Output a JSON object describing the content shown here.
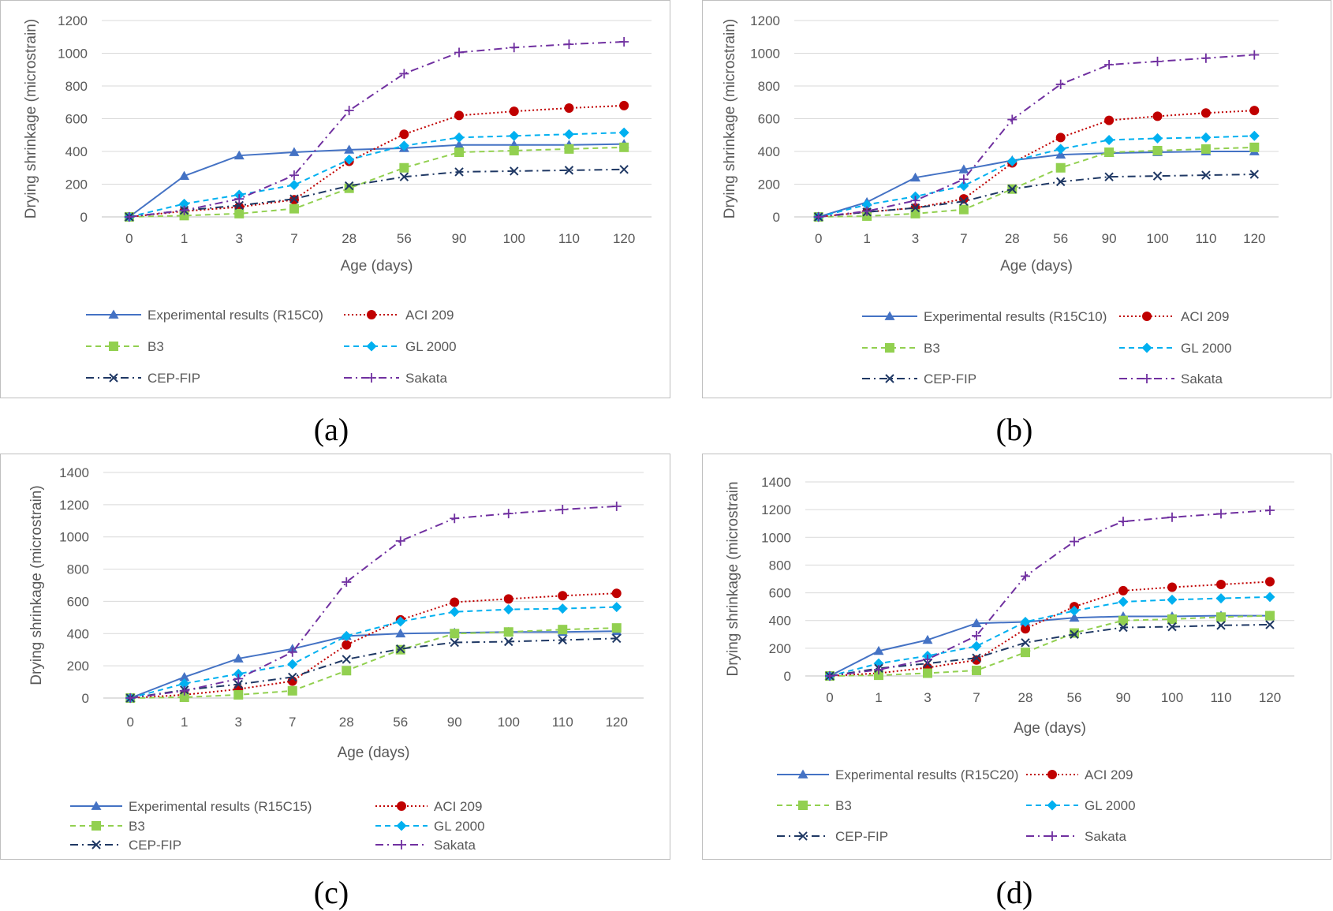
{
  "figure": {
    "panels": [
      {
        "id": "a",
        "caption": "(a)"
      },
      {
        "id": "b",
        "caption": "(b)"
      },
      {
        "id": "c",
        "caption": "(c)"
      },
      {
        "id": "d",
        "caption": "(d)"
      }
    ]
  },
  "series_styles": [
    {
      "key": "exp",
      "color": "#4472c4",
      "marker": "triangle",
      "dash": "solid"
    },
    {
      "key": "aci",
      "color": "#c00000",
      "marker": "circle",
      "dash": "dotted"
    },
    {
      "key": "b3",
      "color": "#92d050",
      "marker": "square",
      "dash": "dashed"
    },
    {
      "key": "gl",
      "color": "#00b0f0",
      "marker": "diamond",
      "dash": "dashed"
    },
    {
      "key": "cep",
      "color": "#1f3864",
      "marker": "x",
      "dash": "dashdot"
    },
    {
      "key": "sak",
      "color": "#7030a0",
      "marker": "plus",
      "dash": "dashdot"
    }
  ],
  "chart_data": [
    {
      "type": "line",
      "title": "",
      "xlabel": "Age (days)",
      "ylabel": "Drying shrinkage (microstrain)",
      "categories": [
        "0",
        "1",
        "3",
        "7",
        "28",
        "56",
        "90",
        "100",
        "110",
        "120"
      ],
      "ylim": [
        0,
        1200
      ],
      "yticks": [
        "0",
        "200",
        "400",
        "600",
        "800",
        "1000",
        "1200"
      ],
      "grid": true,
      "legend_position": "bottom",
      "series": [
        {
          "name": "Experimental results (R15C0)",
          "values": [
            0,
            250,
            375,
            395,
            410,
            420,
            440,
            440,
            440,
            445
          ]
        },
        {
          "name": "ACI 209",
          "values": [
            0,
            35,
            60,
            105,
            340,
            505,
            620,
            645,
            665,
            680
          ]
        },
        {
          "name": "B3",
          "values": [
            0,
            8,
            20,
            50,
            175,
            300,
            395,
            405,
            415,
            425
          ]
        },
        {
          "name": "GL 2000",
          "values": [
            0,
            80,
            135,
            195,
            350,
            435,
            485,
            495,
            505,
            515
          ]
        },
        {
          "name": "CEP-FIP",
          "values": [
            0,
            40,
            70,
            110,
            190,
            245,
            275,
            280,
            285,
            290
          ]
        },
        {
          "name": "Sakata",
          "values": [
            0,
            40,
            110,
            255,
            650,
            875,
            1005,
            1035,
            1055,
            1070
          ]
        }
      ]
    },
    {
      "type": "line",
      "title": "",
      "xlabel": "Age (days)",
      "ylabel": "Drying shrinkage (microstrain)",
      "categories": [
        "0",
        "1",
        "3",
        "7",
        "28",
        "56",
        "90",
        "100",
        "110",
        "120"
      ],
      "ylim": [
        0,
        1200
      ],
      "yticks": [
        "0",
        "200",
        "400",
        "600",
        "800",
        "1000",
        "1200"
      ],
      "grid": true,
      "legend_position": "bottom",
      "series": [
        {
          "name": "Experimental results (R15C10)",
          "values": [
            0,
            90,
            240,
            290,
            345,
            380,
            390,
            395,
            400,
            400
          ]
        },
        {
          "name": "ACI 209",
          "values": [
            0,
            30,
            55,
            110,
            330,
            485,
            590,
            615,
            635,
            650
          ]
        },
        {
          "name": "B3",
          "values": [
            0,
            5,
            20,
            45,
            170,
            300,
            395,
            405,
            415,
            425
          ]
        },
        {
          "name": "GL 2000",
          "values": [
            0,
            75,
            125,
            190,
            340,
            415,
            470,
            480,
            485,
            495
          ]
        },
        {
          "name": "CEP-FIP",
          "values": [
            0,
            30,
            55,
            95,
            170,
            215,
            245,
            250,
            255,
            260
          ]
        },
        {
          "name": "Sakata",
          "values": [
            0,
            35,
            100,
            230,
            595,
            810,
            930,
            950,
            970,
            990
          ]
        }
      ]
    },
    {
      "type": "line",
      "title": "",
      "xlabel": "Age (days)",
      "ylabel": "Drying shrinkage (microstrain)",
      "categories": [
        "0",
        "1",
        "3",
        "7",
        "28",
        "56",
        "90",
        "100",
        "110",
        "120"
      ],
      "ylim": [
        0,
        1400
      ],
      "yticks": [
        "0",
        "200",
        "400",
        "600",
        "800",
        "1000",
        "1200",
        "1400"
      ],
      "grid": true,
      "legend_position": "bottom",
      "series": [
        {
          "name": "Experimental results (R15C15)",
          "values": [
            0,
            130,
            245,
            305,
            385,
            400,
            405,
            410,
            410,
            415
          ]
        },
        {
          "name": "ACI 209",
          "values": [
            0,
            20,
            55,
            105,
            330,
            485,
            595,
            615,
            635,
            650
          ]
        },
        {
          "name": "B3",
          "values": [
            0,
            5,
            20,
            45,
            170,
            300,
            400,
            410,
            425,
            435
          ]
        },
        {
          "name": "GL 2000",
          "values": [
            0,
            90,
            150,
            210,
            385,
            475,
            535,
            550,
            555,
            565
          ]
        },
        {
          "name": "CEP-FIP",
          "values": [
            0,
            50,
            85,
            130,
            240,
            305,
            345,
            350,
            360,
            370
          ]
        },
        {
          "name": "Sakata",
          "values": [
            0,
            45,
            120,
            285,
            720,
            975,
            1115,
            1145,
            1170,
            1190
          ]
        }
      ]
    },
    {
      "type": "line",
      "title": "",
      "xlabel": "Age (days)",
      "ylabel": "Drying shrinkage (microstrain",
      "categories": [
        "0",
        "1",
        "3",
        "7",
        "28",
        "56",
        "90",
        "100",
        "110",
        "120"
      ],
      "ylim": [
        0,
        1400
      ],
      "yticks": [
        "0",
        "200",
        "400",
        "600",
        "800",
        "1000",
        "1200",
        "1400"
      ],
      "grid": true,
      "legend_position": "bottom",
      "series": [
        {
          "name": "Experimental results (R15C20)",
          "values": [
            0,
            180,
            260,
            380,
            390,
            420,
            430,
            430,
            435,
            435
          ]
        },
        {
          "name": "ACI 209",
          "values": [
            0,
            20,
            60,
            115,
            340,
            500,
            615,
            640,
            660,
            680
          ]
        },
        {
          "name": "B3",
          "values": [
            0,
            5,
            20,
            40,
            170,
            310,
            400,
            410,
            425,
            435
          ]
        },
        {
          "name": "GL 2000",
          "values": [
            0,
            90,
            145,
            215,
            390,
            470,
            535,
            550,
            560,
            570
          ]
        },
        {
          "name": "CEP-FIP",
          "values": [
            0,
            55,
            90,
            130,
            240,
            300,
            350,
            355,
            365,
            370
          ]
        },
        {
          "name": "Sakata",
          "values": [
            0,
            45,
            120,
            290,
            720,
            970,
            1115,
            1145,
            1170,
            1195
          ]
        }
      ]
    }
  ]
}
